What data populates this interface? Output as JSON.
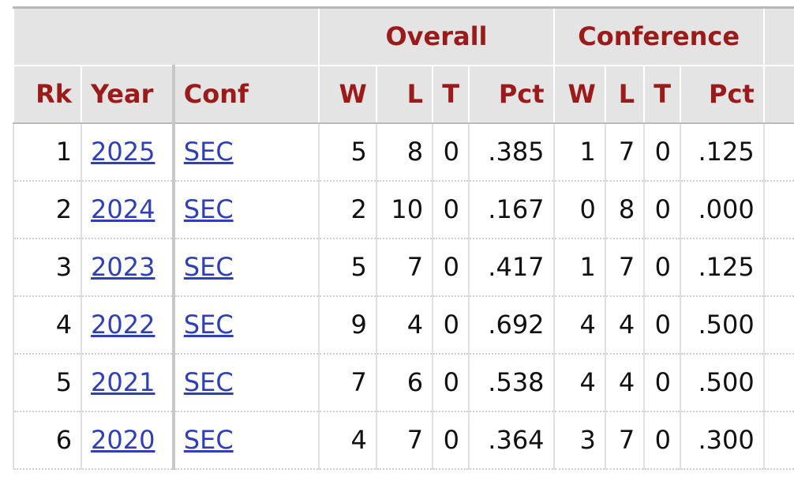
{
  "table": {
    "group_headers": [
      "Overall",
      "Conference"
    ],
    "columns": [
      "Rk",
      "Year",
      "Conf",
      "W",
      "L",
      "T",
      "Pct",
      "W",
      "L",
      "T",
      "Pct"
    ],
    "rows": [
      [
        1,
        2025,
        "SEC",
        5,
        8,
        0,
        ".385",
        1,
        7,
        0,
        ".125"
      ],
      [
        2,
        2024,
        "SEC",
        2,
        10,
        0,
        ".167",
        0,
        8,
        0,
        ".000"
      ],
      [
        3,
        2023,
        "SEC",
        5,
        7,
        0,
        ".417",
        1,
        7,
        0,
        ".125"
      ],
      [
        4,
        2022,
        "SEC",
        9,
        4,
        0,
        ".692",
        4,
        4,
        0,
        ".500"
      ],
      [
        5,
        2021,
        "SEC",
        7,
        6,
        0,
        ".538",
        4,
        4,
        0,
        ".500"
      ],
      [
        6,
        2020,
        "SEC",
        4,
        7,
        0,
        ".364",
        3,
        7,
        0,
        ".300"
      ]
    ]
  }
}
